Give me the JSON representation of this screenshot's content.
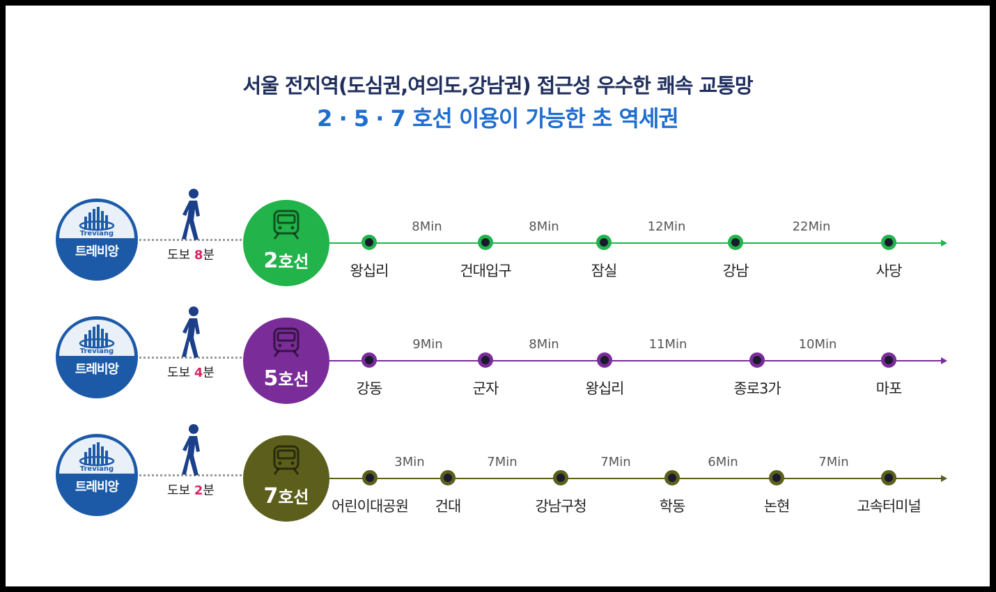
{
  "title_line1": "서울 전지역(도심권,여의도,강남권) 접근성 우수한 쾌속 교통망",
  "title_line2": "2 · 5 · 7 호선 이용이 가능한 초 역세권",
  "colors": {
    "title_dark": "#1f2e5c",
    "title_blue": "#1e6dd0",
    "logo_blue": "#1c5aa8",
    "walk_highlight": "#d6245e"
  },
  "icons": {
    "logo": "treviang-building-icon",
    "walker": "walking-person-icon",
    "train": "subway-train-icon"
  },
  "rows": [
    {
      "logo_word": "Treviang",
      "logo_label": "트레비앙",
      "walk_prefix": "도보 ",
      "walk_minutes": "8",
      "walk_suffix": "분",
      "line_number": "2",
      "line_suffix": "호선",
      "color": "#22b34a",
      "stations": [
        "왕십리",
        "건대입구",
        "잠실",
        "강남",
        "사당"
      ],
      "times": [
        "8Min",
        "8Min",
        "12Min",
        "22Min"
      ]
    },
    {
      "logo_word": "Treviang",
      "logo_label": "트레비앙",
      "walk_prefix": "도보 ",
      "walk_minutes": "4",
      "walk_suffix": "분",
      "line_number": "5",
      "line_suffix": "호선",
      "color": "#7a2c98",
      "stations": [
        "강동",
        "군자",
        "왕십리",
        "종로3가",
        "마포"
      ],
      "times": [
        "9Min",
        "8Min",
        "11Min",
        "10Min"
      ]
    },
    {
      "logo_word": "Treviang",
      "logo_label": "트레비앙",
      "walk_prefix": "도보 ",
      "walk_minutes": "2",
      "walk_suffix": "분",
      "line_number": "7",
      "line_suffix": "호선",
      "color": "#5c5f1b",
      "stations": [
        "어린이대공원",
        "건대",
        "강남구청",
        "학동",
        "논현",
        "고속터미널"
      ],
      "times": [
        "3Min",
        "7Min",
        "7Min",
        "6Min",
        "7Min"
      ]
    }
  ]
}
